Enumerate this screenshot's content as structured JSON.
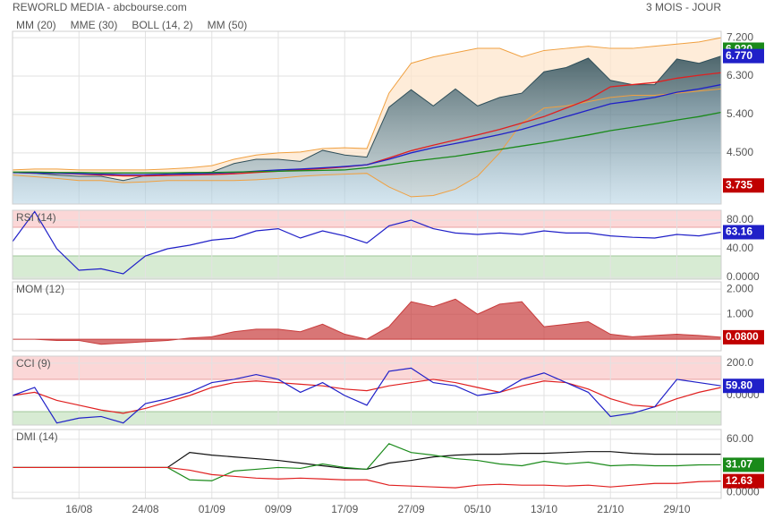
{
  "header": {
    "title": "REWORLD MEDIA - abcbourse.com",
    "period": "3 MOIS - JOUR"
  },
  "chart_data": [
    {
      "type": "price",
      "ylim": [
        3.3,
        7.35
      ],
      "yticks": [
        {
          "value": 7.2,
          "label": "7.200"
        },
        {
          "value": 6.3,
          "label": "6.300"
        },
        {
          "value": 5.4,
          "label": "5.400"
        },
        {
          "value": 4.5,
          "label": "4.500"
        }
      ],
      "close": [
        4.04,
        4.02,
        3.98,
        3.95,
        3.95,
        3.85,
        3.97,
        4.0,
        4.02,
        4.05,
        4.25,
        4.35,
        4.35,
        4.3,
        4.56,
        4.45,
        4.4,
        5.57,
        5.98,
        5.6,
        6.0,
        5.6,
        5.8,
        5.9,
        6.4,
        6.5,
        6.72,
        6.2,
        6.1,
        6.1,
        6.7,
        6.6,
        6.77
      ],
      "band": {
        "name": "BOLL (14, 2)",
        "color": "#f0a040",
        "upper": [
          4.1,
          4.12,
          4.12,
          4.1,
          4.1,
          4.1,
          4.1,
          4.12,
          4.15,
          4.2,
          4.35,
          4.45,
          4.5,
          4.52,
          4.6,
          4.62,
          4.6,
          5.9,
          6.6,
          6.75,
          6.85,
          6.95,
          6.95,
          6.75,
          6.9,
          6.95,
          7.0,
          6.95,
          6.95,
          7.0,
          7.05,
          7.1,
          7.2
        ],
        "lower": [
          3.98,
          3.94,
          3.9,
          3.85,
          3.85,
          3.8,
          3.82,
          3.85,
          3.85,
          3.85,
          3.85,
          3.87,
          3.9,
          3.95,
          3.98,
          4.0,
          4.02,
          3.7,
          3.47,
          3.5,
          3.65,
          3.95,
          4.5,
          5.2,
          5.55,
          5.6,
          5.7,
          5.8,
          5.85,
          5.85,
          5.9,
          5.95,
          6.0
        ]
      },
      "series": [
        {
          "name": "MM (20)",
          "color": "#e02020",
          "values": [
            4.04,
            4.03,
            4.02,
            4.0,
            3.98,
            3.96,
            3.96,
            3.97,
            3.98,
            3.99,
            4.01,
            4.04,
            4.07,
            4.1,
            4.13,
            4.17,
            4.22,
            4.38,
            4.55,
            4.68,
            4.8,
            4.92,
            5.05,
            5.2,
            5.35,
            5.55,
            5.75,
            6.05,
            6.1,
            6.15,
            6.25,
            6.32,
            6.38
          ]
        },
        {
          "name": "MME (30)",
          "color": "#2020c8",
          "values": [
            4.04,
            4.03,
            4.02,
            4.01,
            4.0,
            3.99,
            3.99,
            4.0,
            4.01,
            4.02,
            4.04,
            4.07,
            4.1,
            4.12,
            4.15,
            4.18,
            4.22,
            4.35,
            4.5,
            4.62,
            4.72,
            4.82,
            4.93,
            5.05,
            5.2,
            5.35,
            5.5,
            5.65,
            5.72,
            5.8,
            5.92,
            6.0,
            6.1
          ]
        },
        {
          "name": "MM (50)",
          "color": "#1a8a1a",
          "values": [
            4.05,
            4.05,
            4.04,
            4.04,
            4.03,
            4.03,
            4.03,
            4.03,
            4.04,
            4.04,
            4.05,
            4.06,
            4.07,
            4.08,
            4.09,
            4.1,
            4.15,
            4.22,
            4.3,
            4.36,
            4.42,
            4.5,
            4.58,
            4.66,
            4.74,
            4.83,
            4.92,
            5.02,
            5.1,
            5.18,
            5.27,
            5.35,
            5.45
          ]
        }
      ],
      "badges": [
        {
          "value": 6.92,
          "label": "6.920",
          "color": "#1a8a1a"
        },
        {
          "value": 6.77,
          "label": "6.770",
          "color": "#2020c8"
        },
        {
          "value": 3.735,
          "label": "3.735",
          "color": "#c00000"
        }
      ]
    },
    {
      "type": "line",
      "title": "RSI (14)",
      "ylim": [
        -2.5,
        93.75
      ],
      "zones": {
        "low": 30,
        "high": 70
      },
      "yticks": [
        {
          "value": 80,
          "label": "80.00"
        },
        {
          "value": 40,
          "label": "40.00"
        },
        {
          "value": 0,
          "label": "0.0000"
        }
      ],
      "series": [
        {
          "color": "#2020c8",
          "values": [
            50,
            92,
            40,
            10,
            12,
            5,
            30,
            40,
            45,
            52,
            55,
            65,
            68,
            55,
            65,
            58,
            48,
            72,
            80,
            68,
            62,
            60,
            62,
            60,
            65,
            62,
            62,
            58,
            56,
            55,
            60,
            58,
            63.16
          ]
        }
      ],
      "badges": [
        {
          "value": 63.16,
          "label": "63.16",
          "color": "#2020c8"
        }
      ]
    },
    {
      "type": "area",
      "title": "MOM (12)",
      "ylim": [
        -0.46,
        2.29
      ],
      "color": "#c83c3c",
      "yticks": [
        {
          "value": 2,
          "label": "2.000"
        },
        {
          "value": 1,
          "label": "1.000"
        }
      ],
      "series": [
        {
          "color": "#c83c3c",
          "values": [
            0,
            0,
            -0.05,
            -0.05,
            -0.2,
            -0.15,
            -0.1,
            -0.05,
            0.05,
            0.1,
            0.3,
            0.4,
            0.4,
            0.3,
            0.6,
            0.2,
            0.0,
            0.5,
            1.5,
            1.3,
            1.6,
            1.0,
            1.4,
            1.5,
            0.5,
            0.6,
            0.7,
            0.2,
            0.1,
            0.15,
            0.2,
            0.15,
            0.08
          ]
        }
      ],
      "badges": [
        {
          "value": 0.08,
          "label": "0.0800",
          "color": "#c00000"
        }
      ]
    },
    {
      "type": "line",
      "title": "CCI (9)",
      "ylim": [
        -183,
        244
      ],
      "zones": {
        "low": -100,
        "high": 100
      },
      "yticks": [
        {
          "value": 200,
          "label": "200.0"
        },
        {
          "value": 0,
          "label": "0.0000"
        }
      ],
      "series": [
        {
          "color": "#e02020",
          "values": [
            0,
            20,
            -30,
            -60,
            -90,
            -110,
            -80,
            -40,
            0,
            50,
            80,
            90,
            80,
            70,
            60,
            40,
            30,
            60,
            80,
            100,
            80,
            50,
            20,
            60,
            90,
            80,
            40,
            -20,
            -60,
            -70,
            -20,
            20,
            50
          ]
        },
        {
          "color": "#2020c8",
          "values": [
            0,
            50,
            -170,
            -140,
            -130,
            -170,
            -50,
            -20,
            20,
            80,
            100,
            130,
            100,
            20,
            80,
            0,
            -60,
            150,
            170,
            80,
            60,
            0,
            20,
            100,
            140,
            80,
            20,
            -130,
            -110,
            -70,
            100,
            80,
            59.8
          ]
        }
      ],
      "badges": [
        {
          "value": 59.8,
          "label": "59.80",
          "color": "#2020c8"
        }
      ]
    },
    {
      "type": "line",
      "title": "DMI (14)",
      "ylim": [
        -7,
        71
      ],
      "yticks": [
        {
          "value": 60,
          "label": "60.00"
        },
        {
          "value": 0,
          "label": "0.0000"
        }
      ],
      "series": [
        {
          "color": "#111111",
          "values": [
            28,
            28,
            28,
            28,
            28,
            28,
            28,
            28,
            45,
            42,
            40,
            38,
            36,
            33,
            30,
            27,
            26,
            33,
            36,
            40,
            42,
            43,
            43,
            44,
            44,
            45,
            46,
            46,
            44,
            43,
            43,
            43,
            43
          ]
        },
        {
          "color": "#1a8a1a",
          "values": [
            28,
            28,
            28,
            28,
            28,
            28,
            28,
            28,
            14,
            13,
            24,
            26,
            28,
            27,
            32,
            28,
            26,
            55,
            45,
            42,
            38,
            36,
            32,
            30,
            35,
            32,
            34,
            30,
            31,
            30,
            30,
            31,
            31.07
          ]
        },
        {
          "color": "#e02020",
          "values": [
            28,
            28,
            28,
            28,
            28,
            28,
            28,
            28,
            25,
            20,
            18,
            16,
            15,
            16,
            15,
            14,
            14,
            8,
            7,
            6,
            5,
            8,
            9,
            8,
            8,
            7,
            8,
            6,
            8,
            10,
            10,
            12,
            12.63
          ]
        }
      ],
      "badges": [
        {
          "value": 31.07,
          "label": "31.07",
          "color": "#1a8a1a"
        },
        {
          "value": 12.63,
          "label": "12.63",
          "color": "#c00000"
        }
      ],
      "categories": [
        null,
        null,
        null,
        "16/08",
        null,
        null,
        "24/08",
        null,
        null,
        "01/09",
        null,
        null,
        "09/09",
        null,
        null,
        "17/09",
        null,
        null,
        "27/09",
        null,
        null,
        "05/10",
        null,
        null,
        "13/10",
        null,
        null,
        "21/10",
        null,
        null,
        "29/10",
        null,
        null
      ]
    }
  ]
}
